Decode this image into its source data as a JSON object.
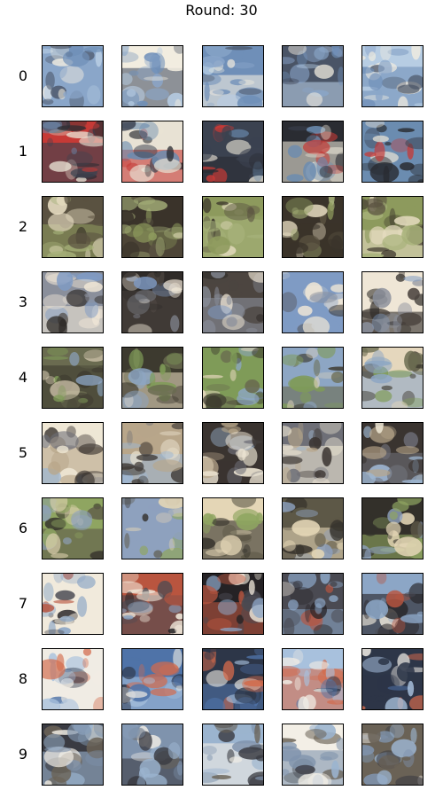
{
  "figure": {
    "title": "Round: 30",
    "rows": [
      {
        "label": "0",
        "palette": [
          "#6f8fb8",
          "#b7cde3",
          "#f2ede0",
          "#4a5466",
          "#8aa6c9"
        ]
      },
      {
        "label": "1",
        "palette": [
          "#3b4250",
          "#6b8cb0",
          "#e8e2d4",
          "#2a2c32",
          "#c63a36"
        ]
      },
      {
        "label": "2",
        "palette": [
          "#5a5241",
          "#8d9a5d",
          "#e6dcc1",
          "#3a332a",
          "#a7b27a"
        ]
      },
      {
        "label": "3",
        "palette": [
          "#8a8f9b",
          "#4c4540",
          "#efe6d6",
          "#2f2b28",
          "#7f9bc4"
        ]
      },
      {
        "label": "4",
        "palette": [
          "#6a6b50",
          "#7f9b58",
          "#e5d7bd",
          "#3d3a2f",
          "#8da6c4"
        ]
      },
      {
        "label": "5",
        "palette": [
          "#6e6f77",
          "#efe7d5",
          "#3a3430",
          "#9db6d1",
          "#b8a68a"
        ]
      },
      {
        "label": "6",
        "palette": [
          "#5d5847",
          "#8fa561",
          "#e4d6b6",
          "#33302a",
          "#8ea1be"
        ]
      },
      {
        "label": "7",
        "palette": [
          "#4a4a52",
          "#f1eadc",
          "#252225",
          "#8ca6c6",
          "#b9553f"
        ]
      },
      {
        "label": "8",
        "palette": [
          "#4f73a8",
          "#a8c1dd",
          "#f0ece4",
          "#2d3648",
          "#d36a4b"
        ]
      },
      {
        "label": "9",
        "palette": [
          "#7f93ad",
          "#f3efe6",
          "#3a3b42",
          "#9bb4cf",
          "#6a6256"
        ]
      }
    ]
  }
}
